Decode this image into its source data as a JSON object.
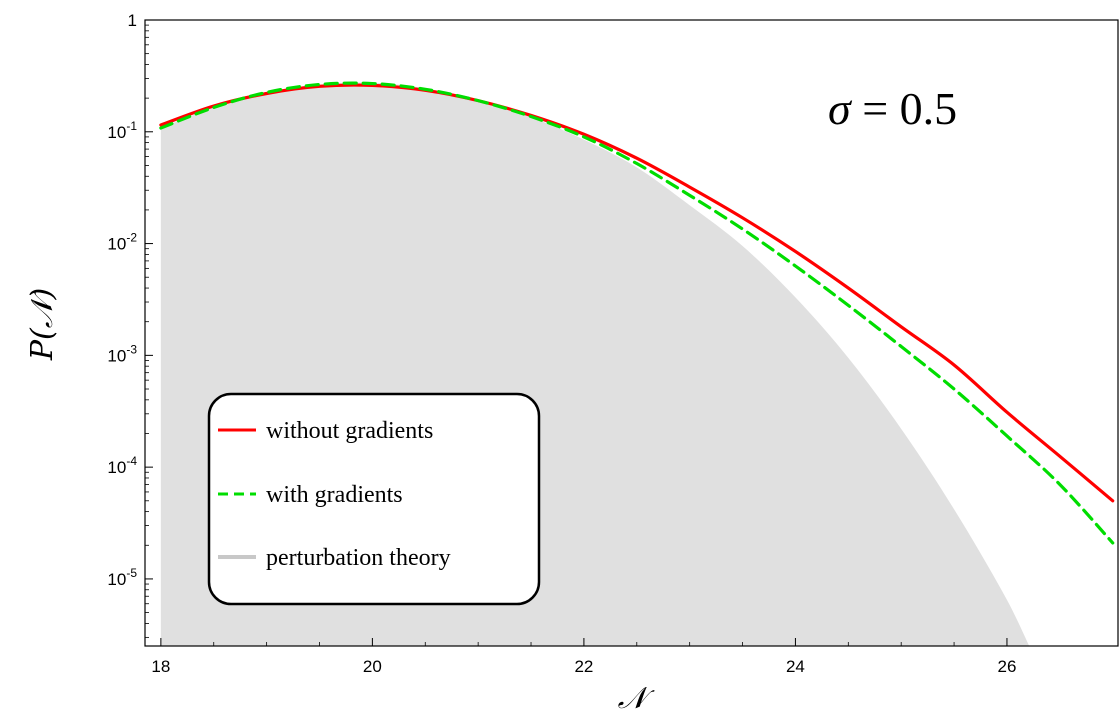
{
  "chart_data": {
    "type": "area",
    "xlabel": "𝒩",
    "ylabel": "P(𝒩)",
    "annotation": {
      "symbol": "σ",
      "text": " = 0.5"
    },
    "xlim": [
      17.85,
      27.05
    ],
    "ylim_log10": [
      -5.6,
      0
    ],
    "y_scale": "log",
    "x_ticks": [
      18,
      20,
      22,
      24,
      26
    ],
    "x_tick_labels": [
      "18",
      "20",
      "22",
      "24",
      "26"
    ],
    "y_ticks": [
      {
        "value": 1,
        "base": "1",
        "exp": ""
      },
      {
        "value": 0.1,
        "base": "10",
        "exp": "-1"
      },
      {
        "value": 0.01,
        "base": "10",
        "exp": "-2"
      },
      {
        "value": 0.001,
        "base": "10",
        "exp": "-3"
      },
      {
        "value": 0.0001,
        "base": "10",
        "exp": "-4"
      },
      {
        "value": 1e-05,
        "base": "10",
        "exp": "-5"
      }
    ],
    "legend_position": "bottom-left",
    "series": [
      {
        "name": "without gradients",
        "style": "solid",
        "color": "#ff0000",
        "x": [
          18.0,
          18.5,
          19.0,
          19.5,
          20.0,
          20.5,
          21.0,
          21.5,
          22.0,
          22.5,
          23.0,
          23.5,
          24.0,
          24.5,
          25.0,
          25.5,
          26.0,
          26.5,
          27.0
        ],
        "y": [
          0.115,
          0.17,
          0.22,
          0.255,
          0.26,
          0.235,
          0.19,
          0.14,
          0.095,
          0.058,
          0.032,
          0.017,
          0.0085,
          0.004,
          0.0018,
          0.00082,
          0.00031,
          0.000125,
          5e-05
        ]
      },
      {
        "name": "with gradients",
        "style": "dashed",
        "color": "#00dd00",
        "x": [
          18.0,
          18.5,
          19.0,
          19.5,
          20.0,
          20.5,
          21.0,
          21.5,
          22.0,
          22.5,
          23.0,
          23.5,
          24.0,
          24.5,
          25.0,
          25.5,
          26.0,
          26.5,
          27.0
        ],
        "y": [
          0.108,
          0.165,
          0.225,
          0.265,
          0.27,
          0.24,
          0.19,
          0.137,
          0.09,
          0.052,
          0.027,
          0.0135,
          0.0063,
          0.0028,
          0.0012,
          0.0005,
          0.00019,
          7e-05,
          2.1e-05
        ]
      },
      {
        "name": "perturbation theory",
        "style": "fill",
        "color": "#c8c8c8",
        "fill": "#e0e0e0",
        "x": [
          18.0,
          18.5,
          19.0,
          19.5,
          20.0,
          20.5,
          21.0,
          21.5,
          22.0,
          22.5,
          23.0,
          23.5,
          24.0,
          24.5,
          25.0,
          25.5,
          26.0,
          26.5,
          26.85
        ],
        "y": [
          0.108,
          0.165,
          0.225,
          0.265,
          0.275,
          0.245,
          0.19,
          0.135,
          0.085,
          0.048,
          0.022,
          0.0095,
          0.0033,
          0.00095,
          0.00022,
          4.2e-05,
          6.5e-06,
          8e-07,
          2.5e-06
        ]
      }
    ]
  }
}
